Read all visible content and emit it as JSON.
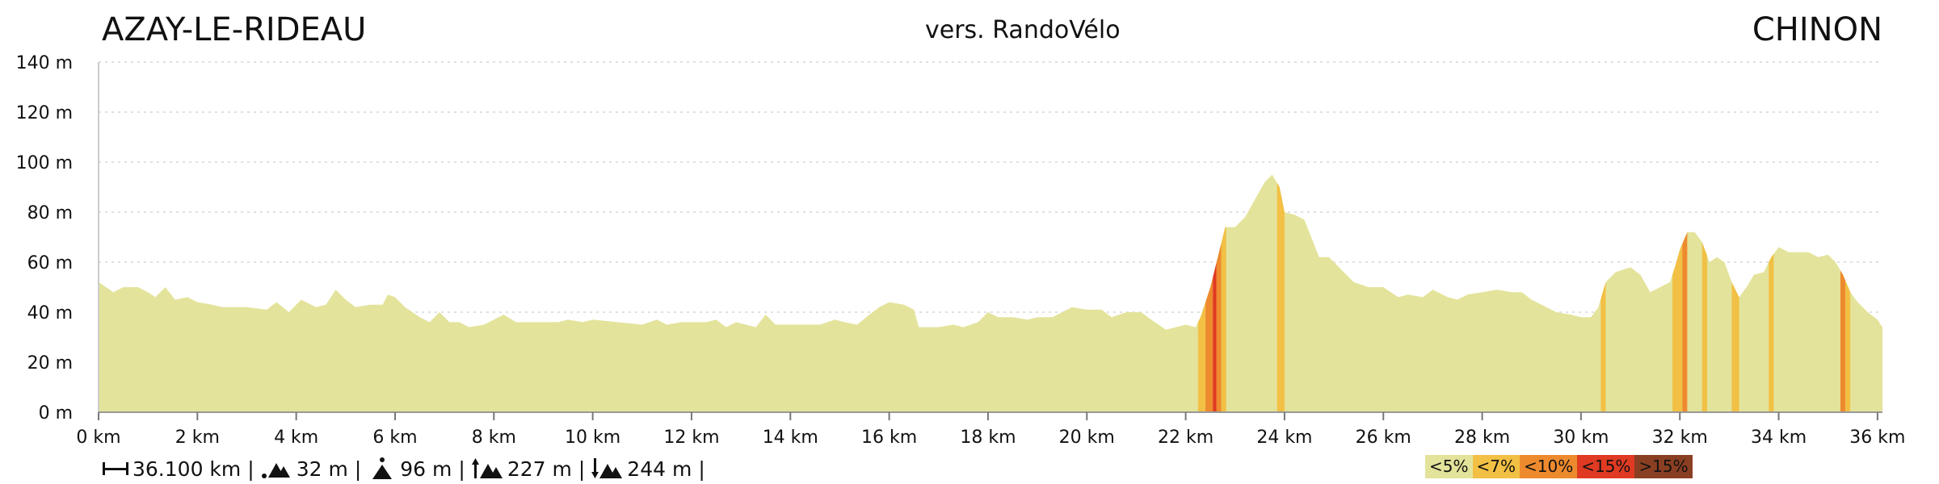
{
  "header": {
    "start": "AZAY-LE-RIDEAU",
    "version": "vers. RandoVélo",
    "end": "CHINON"
  },
  "stats": {
    "distance": "36.100 km",
    "min_alt": "32 m",
    "max_alt": "96 m",
    "ascent": "227 m",
    "descent": "244 m"
  },
  "legend": [
    {
      "label": "<5%",
      "color": "#e3e39b"
    },
    {
      "label": "<7%",
      "color": "#f2c044"
    },
    {
      "label": "<10%",
      "color": "#ee8a2e"
    },
    {
      "label": "<15%",
      "color": "#e03a22"
    },
    {
      "label": ">15%",
      "color": "#8a3f22"
    }
  ],
  "colors": {
    "base": "#e3e39b",
    "grid": "#d6d6d6",
    "axis": "#cccccc"
  },
  "chart_data": {
    "type": "area",
    "xlabel": "",
    "ylabel": "",
    "xlim": [
      0,
      36.1
    ],
    "ylim": [
      0,
      140
    ],
    "x_ticks": [
      "0 km",
      "2 km",
      "4 km",
      "6 km",
      "8 km",
      "10 km",
      "12 km",
      "14 km",
      "16 km",
      "18 km",
      "20 km",
      "22 km",
      "24 km",
      "26 km",
      "28 km",
      "30 km",
      "32 km",
      "34 km",
      "36 km"
    ],
    "y_ticks": [
      "0 m",
      "20 m",
      "40 m",
      "60 m",
      "80 m",
      "100 m",
      "120 m",
      "140 m"
    ],
    "profile": [
      [
        0,
        52
      ],
      [
        0.15,
        50
      ],
      [
        0.3,
        48
      ],
      [
        0.5,
        50
      ],
      [
        0.8,
        50
      ],
      [
        1.0,
        48
      ],
      [
        1.15,
        46
      ],
      [
        1.35,
        50
      ],
      [
        1.55,
        45
      ],
      [
        1.8,
        46
      ],
      [
        2.0,
        44
      ],
      [
        2.3,
        43
      ],
      [
        2.5,
        42
      ],
      [
        3.0,
        42
      ],
      [
        3.4,
        41
      ],
      [
        3.6,
        44
      ],
      [
        3.85,
        40
      ],
      [
        4.1,
        45
      ],
      [
        4.4,
        42
      ],
      [
        4.6,
        43
      ],
      [
        4.8,
        49
      ],
      [
        5.0,
        45
      ],
      [
        5.2,
        42
      ],
      [
        5.5,
        43
      ],
      [
        5.75,
        43
      ],
      [
        5.85,
        47
      ],
      [
        6.0,
        46
      ],
      [
        6.2,
        42
      ],
      [
        6.5,
        38
      ],
      [
        6.7,
        36
      ],
      [
        6.9,
        40
      ],
      [
        7.1,
        36
      ],
      [
        7.3,
        36
      ],
      [
        7.5,
        34
      ],
      [
        7.8,
        35
      ],
      [
        8.0,
        37
      ],
      [
        8.2,
        39
      ],
      [
        8.45,
        36
      ],
      [
        9.0,
        36
      ],
      [
        9.3,
        36
      ],
      [
        9.5,
        37
      ],
      [
        9.8,
        36
      ],
      [
        10.0,
        37
      ],
      [
        10.5,
        36
      ],
      [
        11.0,
        35
      ],
      [
        11.3,
        37
      ],
      [
        11.5,
        35
      ],
      [
        11.8,
        36
      ],
      [
        12.0,
        36
      ],
      [
        12.3,
        36
      ],
      [
        12.5,
        37
      ],
      [
        12.7,
        34
      ],
      [
        12.9,
        36
      ],
      [
        13.1,
        35
      ],
      [
        13.3,
        34
      ],
      [
        13.5,
        39
      ],
      [
        13.7,
        35
      ],
      [
        14.0,
        35
      ],
      [
        14.3,
        35
      ],
      [
        14.6,
        35
      ],
      [
        14.9,
        37
      ],
      [
        15.1,
        36
      ],
      [
        15.35,
        35
      ],
      [
        15.6,
        39
      ],
      [
        15.8,
        42
      ],
      [
        16.0,
        44
      ],
      [
        16.3,
        43
      ],
      [
        16.5,
        41
      ],
      [
        16.6,
        34
      ],
      [
        17.0,
        34
      ],
      [
        17.3,
        35
      ],
      [
        17.5,
        34
      ],
      [
        17.8,
        36
      ],
      [
        18.0,
        40
      ],
      [
        18.2,
        38
      ],
      [
        18.5,
        38
      ],
      [
        18.8,
        37
      ],
      [
        19.0,
        38
      ],
      [
        19.3,
        38
      ],
      [
        19.7,
        42
      ],
      [
        20.0,
        41
      ],
      [
        20.3,
        41
      ],
      [
        20.5,
        38
      ],
      [
        20.8,
        40
      ],
      [
        21.1,
        40
      ],
      [
        21.3,
        37
      ],
      [
        21.6,
        33
      ],
      [
        21.8,
        34
      ],
      [
        22.0,
        35
      ],
      [
        22.2,
        34
      ],
      [
        22.3,
        38
      ],
      [
        22.4,
        44
      ],
      [
        22.5,
        50
      ],
      [
        22.6,
        58
      ],
      [
        22.7,
        66
      ],
      [
        22.8,
        74
      ],
      [
        22.9,
        74
      ],
      [
        23.0,
        74
      ],
      [
        23.2,
        78
      ],
      [
        23.4,
        85
      ],
      [
        23.6,
        92
      ],
      [
        23.75,
        95
      ],
      [
        23.9,
        90
      ],
      [
        24.0,
        80
      ],
      [
        24.2,
        79
      ],
      [
        24.4,
        77
      ],
      [
        24.5,
        72
      ],
      [
        24.7,
        62
      ],
      [
        24.9,
        62
      ],
      [
        25.1,
        58
      ],
      [
        25.4,
        52
      ],
      [
        25.7,
        50
      ],
      [
        26.0,
        50
      ],
      [
        26.3,
        46
      ],
      [
        26.5,
        47
      ],
      [
        26.8,
        46
      ],
      [
        27.0,
        49
      ],
      [
        27.3,
        46
      ],
      [
        27.5,
        45
      ],
      [
        27.7,
        47
      ],
      [
        28.0,
        48
      ],
      [
        28.3,
        49
      ],
      [
        28.6,
        48
      ],
      [
        28.8,
        48
      ],
      [
        29.0,
        45
      ],
      [
        29.3,
        42
      ],
      [
        29.5,
        40
      ],
      [
        29.8,
        39
      ],
      [
        30.0,
        38
      ],
      [
        30.2,
        38
      ],
      [
        30.35,
        42
      ],
      [
        30.5,
        52
      ],
      [
        30.7,
        56
      ],
      [
        31.0,
        58
      ],
      [
        31.2,
        55
      ],
      [
        31.4,
        48
      ],
      [
        31.6,
        50
      ],
      [
        31.8,
        52
      ],
      [
        31.9,
        58
      ],
      [
        32.0,
        65
      ],
      [
        32.15,
        72
      ],
      [
        32.3,
        72
      ],
      [
        32.45,
        68
      ],
      [
        32.6,
        60
      ],
      [
        32.75,
        62
      ],
      [
        32.9,
        60
      ],
      [
        33.05,
        52
      ],
      [
        33.2,
        46
      ],
      [
        33.35,
        50
      ],
      [
        33.5,
        55
      ],
      [
        33.7,
        56
      ],
      [
        33.85,
        62
      ],
      [
        34.0,
        66
      ],
      [
        34.2,
        64
      ],
      [
        34.4,
        64
      ],
      [
        34.6,
        64
      ],
      [
        34.8,
        62
      ],
      [
        35.0,
        63
      ],
      [
        35.15,
        60
      ],
      [
        35.3,
        55
      ],
      [
        35.45,
        48
      ],
      [
        35.6,
        44
      ],
      [
        35.8,
        40
      ],
      [
        36.0,
        37
      ],
      [
        36.1,
        34
      ]
    ],
    "slope_bands": [
      {
        "from": 22.25,
        "to": 22.4,
        "class": "<7%"
      },
      {
        "from": 22.4,
        "to": 22.55,
        "class": "<10%"
      },
      {
        "from": 22.55,
        "to": 22.62,
        "class": "<15%"
      },
      {
        "from": 22.62,
        "to": 22.72,
        "class": "<10%"
      },
      {
        "from": 22.72,
        "to": 22.82,
        "class": "<7%"
      },
      {
        "from": 23.85,
        "to": 24.0,
        "class": "<7%"
      },
      {
        "from": 30.4,
        "to": 30.5,
        "class": "<7%"
      },
      {
        "from": 31.85,
        "to": 32.05,
        "class": "<7%"
      },
      {
        "from": 32.05,
        "to": 32.15,
        "class": "<10%"
      },
      {
        "from": 32.45,
        "to": 32.55,
        "class": "<7%"
      },
      {
        "from": 33.05,
        "to": 33.2,
        "class": "<7%"
      },
      {
        "from": 33.8,
        "to": 33.9,
        "class": "<7%"
      },
      {
        "from": 35.25,
        "to": 35.35,
        "class": "<10%"
      },
      {
        "from": 35.35,
        "to": 35.45,
        "class": "<7%"
      }
    ]
  }
}
